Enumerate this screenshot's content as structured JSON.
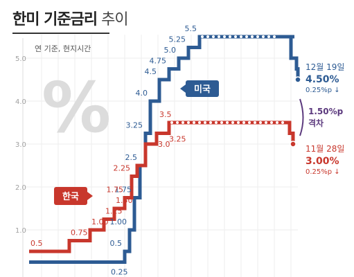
{
  "title": "한미 기준금리",
  "subtitle": "추이",
  "chart_data": {
    "type": "line",
    "note": "연 기준, 현지시간",
    "ylim": [
      0,
      5.5
    ],
    "yticks": [
      "1.0",
      "2.0",
      "3.0",
      "4.0",
      "5.0"
    ],
    "yticks_values": [
      1,
      2,
      3,
      4,
      5
    ],
    "grid": true,
    "series": [
      {
        "name": "미국",
        "color": "#2d5b93",
        "steps": [
          0.25,
          0.25,
          0.25,
          0.25,
          0.25,
          0.5,
          1.0,
          1.75,
          2.5,
          3.25,
          4.0,
          4.5,
          4.75,
          5.0,
          5.25,
          5.5,
          5.5,
          5.5,
          5.5,
          5.5,
          5.5,
          5.5,
          5.5,
          5.5,
          5.0,
          4.75,
          4.5
        ],
        "labels": [
          {
            "i": 5,
            "text": "0.5"
          },
          {
            "i": 6,
            "text": "1.00"
          },
          {
            "i": 7,
            "text": "1.75"
          },
          {
            "i": 8,
            "text": "2.5"
          },
          {
            "i": 9,
            "text": "3.25"
          },
          {
            "i": 10,
            "text": "4.0"
          },
          {
            "i": 11,
            "text": "4.5"
          },
          {
            "i": 12,
            "text": "4.75"
          },
          {
            "i": 13,
            "text": "5.0"
          },
          {
            "i": 14,
            "text": "5.25"
          },
          {
            "i": 15,
            "text": "5.5"
          }
        ],
        "extra_labels": [
          {
            "value": 0.25,
            "text": "0.25"
          }
        ]
      },
      {
        "name": "한국",
        "color": "#c8372c",
        "steps": [
          0.5,
          0.75,
          1.0,
          1.25,
          1.5,
          1.75,
          2.25,
          2.5,
          3.0,
          3.25,
          3.5,
          3.5,
          3.5,
          3.5,
          3.5,
          3.5,
          3.5,
          3.5,
          3.5,
          3.5,
          3.5,
          3.25,
          3.0
        ],
        "labels": [
          {
            "i": 0,
            "text": "0.5"
          },
          {
            "i": 1,
            "text": "0.75"
          },
          {
            "i": 2,
            "text": "1.00"
          },
          {
            "i": 3,
            "text": "1.25"
          },
          {
            "i": 4,
            "text": "1.50"
          },
          {
            "i": 5,
            "text": "1.75"
          },
          {
            "i": 6,
            "text": "2.25"
          },
          {
            "i": 8,
            "text": "3.0"
          },
          {
            "i": 9,
            "text": "3.25"
          },
          {
            "i": 10,
            "text": "3.5"
          }
        ]
      }
    ],
    "us_latest": {
      "date": "12월 19일",
      "value": "4.50%",
      "change": "0.25%p ↓"
    },
    "kr_latest": {
      "date": "11월 28일",
      "value": "3.00%",
      "change": "0.25%p ↓"
    },
    "gap": {
      "value": "1.50%p",
      "label": "격차"
    },
    "extra_ytick": "5.0"
  }
}
